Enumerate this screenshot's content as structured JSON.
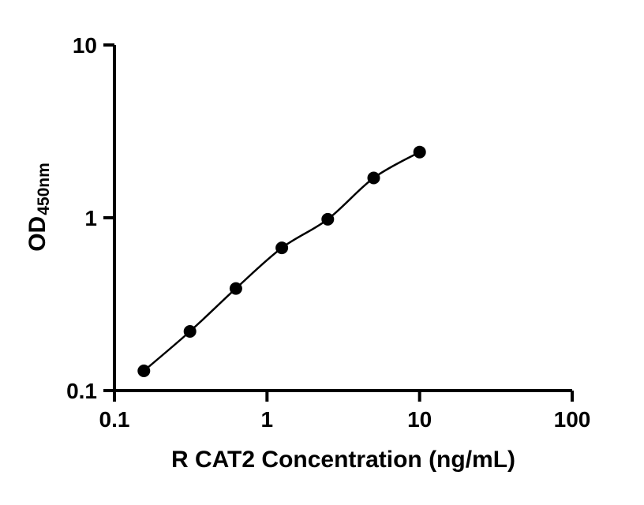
{
  "chart_data": {
    "type": "scatter",
    "subtype": "standard-curve-line-with-markers",
    "x": [
      0.156,
      0.3125,
      0.625,
      1.25,
      2.5,
      5,
      10
    ],
    "y": [
      0.13,
      0.22,
      0.39,
      0.67,
      0.98,
      1.7,
      2.4
    ],
    "xlabel": "R CAT2 Concentration (ng/mL)",
    "ylabel_main": "OD",
    "ylabel_sub": "450nm",
    "xscale": "log",
    "yscale": "log",
    "xlim": [
      0.1,
      100
    ],
    "ylim": [
      0.1,
      10
    ],
    "x_ticks": [
      0.1,
      1,
      10,
      100
    ],
    "x_tick_labels": [
      "0.1",
      "1",
      "10",
      "100"
    ],
    "y_ticks": [
      0.1,
      1,
      10
    ],
    "y_tick_labels": [
      "0.1",
      "1",
      "10"
    ],
    "grid": "off",
    "legend": "none",
    "colors": {
      "line": "#000000",
      "marker": "#000000",
      "axis": "#000000",
      "tick_label": "#000000",
      "background": "#ffffff"
    }
  }
}
